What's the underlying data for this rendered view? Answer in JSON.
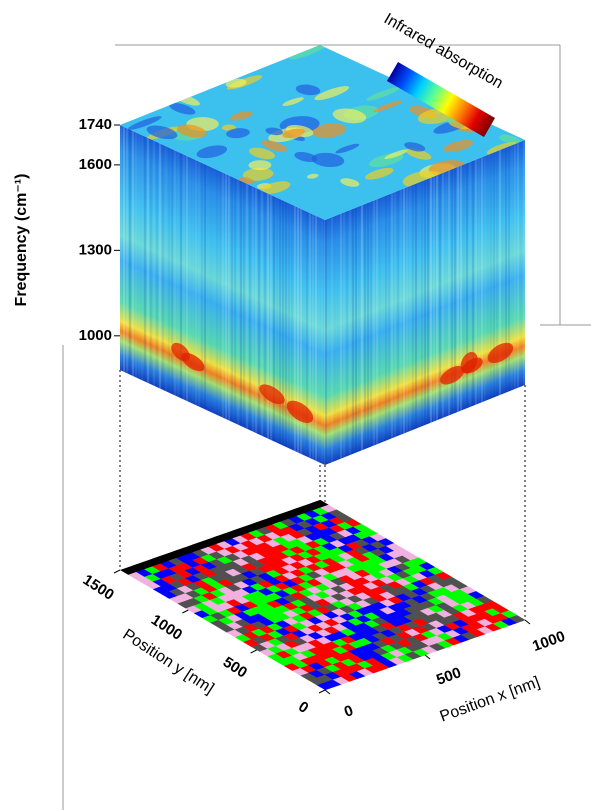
{
  "chart_data": {
    "type": "hyperspectral-cube",
    "z_label": "Frequency (cm⁻¹)",
    "zlim": [
      880,
      1740
    ],
    "zticks": [
      1000,
      1300,
      1600,
      1740
    ],
    "x_label": "Position x [nm]",
    "xlim": [
      0,
      1000
    ],
    "xticks": [
      0,
      500,
      1000
    ],
    "y_label": "Position y [nm]",
    "ylim": [
      0,
      1500
    ],
    "yticks": [
      0,
      500,
      1000,
      1500
    ],
    "colorbar_label": "Infrared absorption",
    "colormap": [
      "#0000a0",
      "#0050ff",
      "#00d0ff",
      "#60ff90",
      "#ffff00",
      "#ff8000",
      "#e00000",
      "#800000"
    ],
    "cluster_colors": [
      "#ff0000",
      "#0000ff",
      "#00ff00",
      "#f0b0e0",
      "#505050"
    ]
  }
}
